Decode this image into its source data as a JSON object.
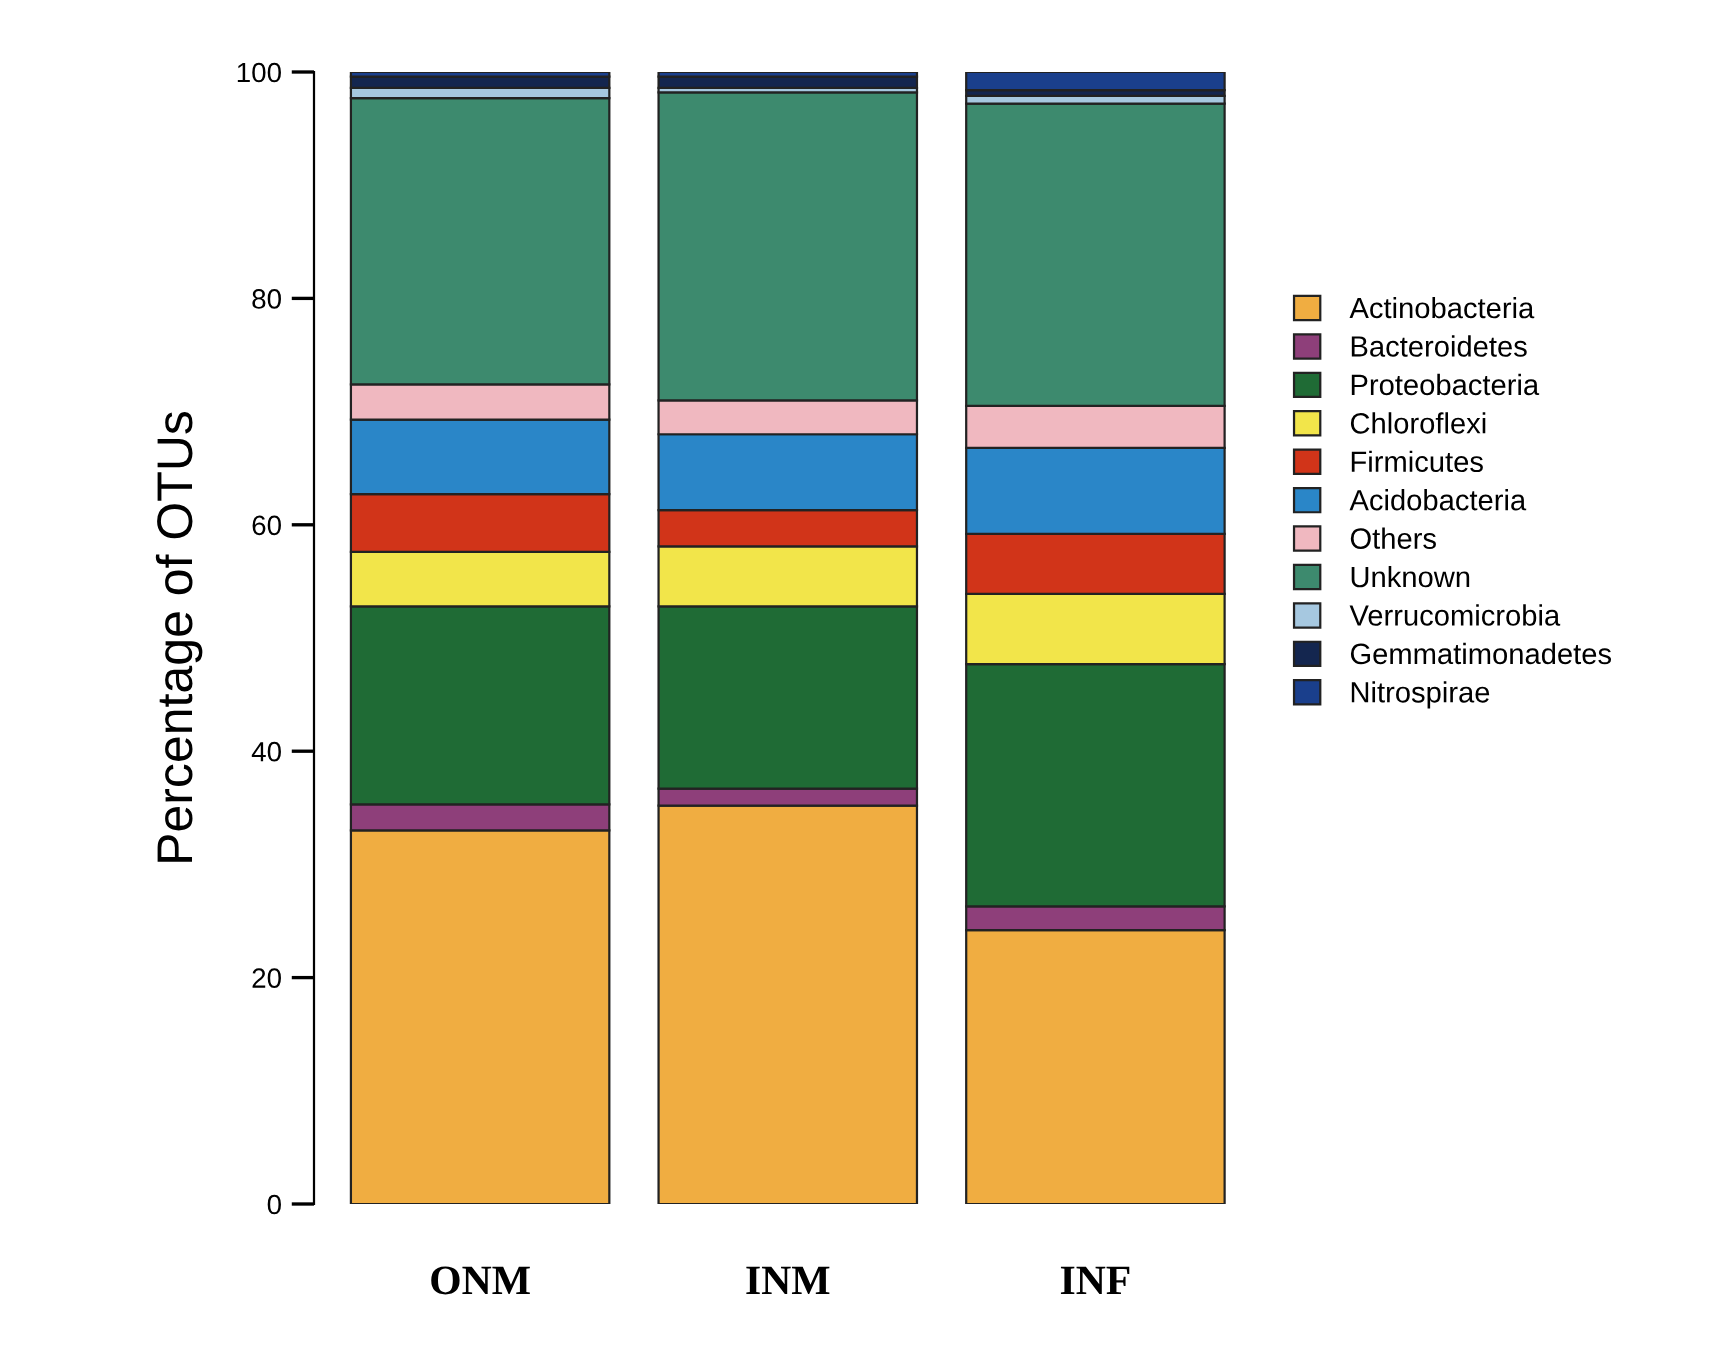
{
  "chart_data": {
    "type": "bar",
    "stacked": true,
    "ylabel": "Percentage of OTUs",
    "categories": [
      "ONM",
      "INM",
      "INF"
    ],
    "ylim": [
      0,
      100
    ],
    "yticks": [
      0,
      20,
      40,
      60,
      80,
      100
    ],
    "grid": false,
    "legend": "right",
    "series": [
      {
        "name": "Actinobacteria",
        "color": "#f0ad41",
        "values": [
          33.0,
          35.2,
          24.2
        ]
      },
      {
        "name": "Bacteroidetes",
        "color": "#8e3f7a",
        "values": [
          2.3,
          1.5,
          2.1
        ]
      },
      {
        "name": "Proteobacteria",
        "color": "#1f6b35",
        "values": [
          17.5,
          16.1,
          21.4
        ]
      },
      {
        "name": "Chloroflexi",
        "color": "#f2e54a",
        "values": [
          4.8,
          5.3,
          6.2
        ]
      },
      {
        "name": "Firmicutes",
        "color": "#d13419",
        "values": [
          5.1,
          3.2,
          5.3
        ]
      },
      {
        "name": "Acidobacteria",
        "color": "#2a86c8",
        "values": [
          6.6,
          6.7,
          7.6
        ]
      },
      {
        "name": "Others",
        "color": "#f0b8c0",
        "values": [
          3.1,
          3.0,
          3.7
        ]
      },
      {
        "name": "Unknown",
        "color": "#3d8a6e",
        "values": [
          25.3,
          27.2,
          26.7
        ]
      },
      {
        "name": "Verrucomicrobia",
        "color": "#a6c8e0",
        "values": [
          0.9,
          0.4,
          0.7
        ]
      },
      {
        "name": "Gemmatimonadetes",
        "color": "#14264f",
        "values": [
          1.0,
          1.0,
          0.5
        ]
      },
      {
        "name": "Nitrospirae",
        "color": "#1a3f8c",
        "values": [
          0.4,
          0.4,
          1.6
        ]
      }
    ]
  }
}
